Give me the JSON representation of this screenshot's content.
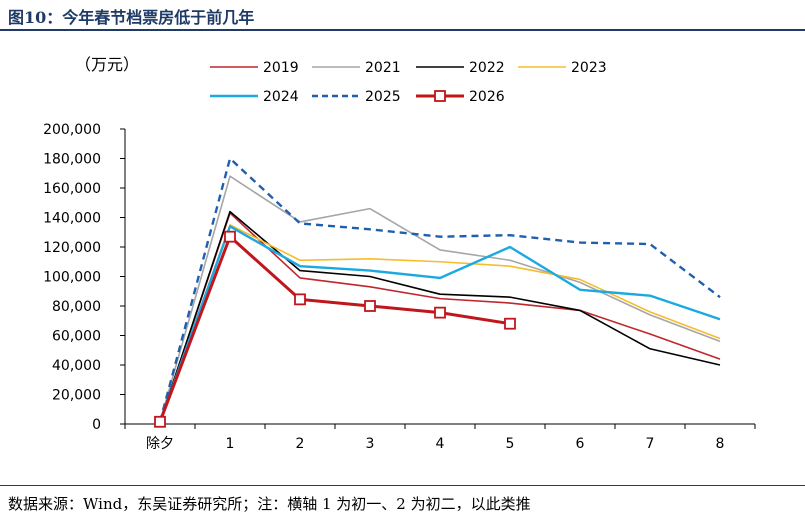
{
  "figure": {
    "title": "图10：今年春节档票房低于前几年",
    "source": "数据来源：Wind，东吴证券研究所；注：横轴 1 为初一、2 为初二，以此类推"
  },
  "chart_data": {
    "type": "line",
    "unit_label": "（万元）",
    "categories": [
      "除夕",
      "1",
      "2",
      "3",
      "4",
      "5",
      "6",
      "7",
      "8"
    ],
    "ylim": [
      0,
      200000
    ],
    "yticks": [
      "0",
      "20,000",
      "40,000",
      "60,000",
      "80,000",
      "100,000",
      "120,000",
      "140,000",
      "160,000",
      "180,000",
      "200,000"
    ],
    "ytick_values": [
      0,
      20000,
      40000,
      60000,
      80000,
      100000,
      120000,
      140000,
      160000,
      180000,
      200000
    ],
    "legend_position": "top",
    "grid": false,
    "series": [
      {
        "name": "2019",
        "color": "#c0262d",
        "style": "solid",
        "width": 1.6,
        "values": [
          1500,
          143000,
          99000,
          93000,
          85000,
          82000,
          77000,
          61000,
          44000
        ]
      },
      {
        "name": "2021",
        "color": "#a6a6a6",
        "style": "solid",
        "width": 1.6,
        "values": [
          1500,
          168000,
          137000,
          146000,
          118000,
          111000,
          96000,
          74000,
          56000
        ]
      },
      {
        "name": "2022",
        "color": "#000000",
        "style": "solid",
        "width": 1.6,
        "values": [
          1500,
          144000,
          104000,
          100000,
          88000,
          86000,
          77000,
          51000,
          40000
        ]
      },
      {
        "name": "2023",
        "color": "#f5bd2b",
        "style": "solid",
        "width": 1.6,
        "values": [
          1500,
          135000,
          111000,
          112000,
          110000,
          107000,
          98000,
          76000,
          58000
        ]
      },
      {
        "name": "2024",
        "color": "#1ba9e0",
        "style": "solid",
        "width": 2.4,
        "values": [
          1500,
          134000,
          107000,
          104000,
          99000,
          120000,
          91000,
          87000,
          71000
        ]
      },
      {
        "name": "2025",
        "color": "#1f5fae",
        "style": "dashed",
        "width": 2.4,
        "values": [
          1500,
          180000,
          136000,
          132000,
          127000,
          128000,
          123000,
          122000,
          86000
        ]
      },
      {
        "name": "2026",
        "color": "#c0161c",
        "style": "solid",
        "width": 3,
        "marker": "square",
        "values": [
          1500,
          127000,
          84500,
          80000,
          75500,
          68000,
          null,
          null,
          null
        ]
      }
    ]
  }
}
